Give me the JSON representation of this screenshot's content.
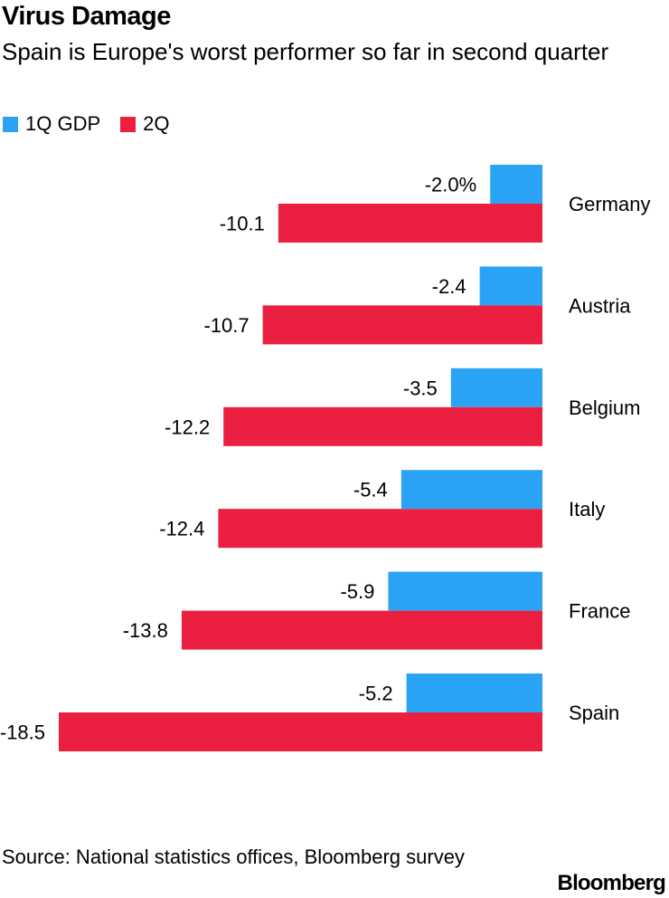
{
  "title": "Virus Damage",
  "subtitle": "Spain is Europe's worst performer so far in second quarter",
  "source": "Source: National statistics offices, Bloomberg survey",
  "brand": "Bloomberg",
  "colors": {
    "q1": "#2aa3f5",
    "q2": "#eb2040"
  },
  "chart_data": {
    "type": "bar",
    "orientation": "horizontal",
    "categories": [
      "Germany",
      "Austria",
      "Belgium",
      "Italy",
      "France",
      "Spain"
    ],
    "series": [
      {
        "name": "1Q GDP",
        "values": [
          -2.0,
          -2.4,
          -3.5,
          -5.4,
          -5.9,
          -5.2
        ],
        "labels": [
          "-2.0%",
          "-2.4",
          "-3.5",
          "-5.4",
          "-5.9",
          "-5.2"
        ]
      },
      {
        "name": "2Q",
        "values": [
          -10.1,
          -10.7,
          -12.2,
          -12.4,
          -13.8,
          -18.5
        ],
        "labels": [
          "-10.1",
          "-10.7",
          "-12.2",
          "-12.4",
          "-13.8",
          "-18.5"
        ]
      }
    ],
    "xlim": [
      -18.5,
      0
    ],
    "legend": "top-left",
    "grid": false
  }
}
